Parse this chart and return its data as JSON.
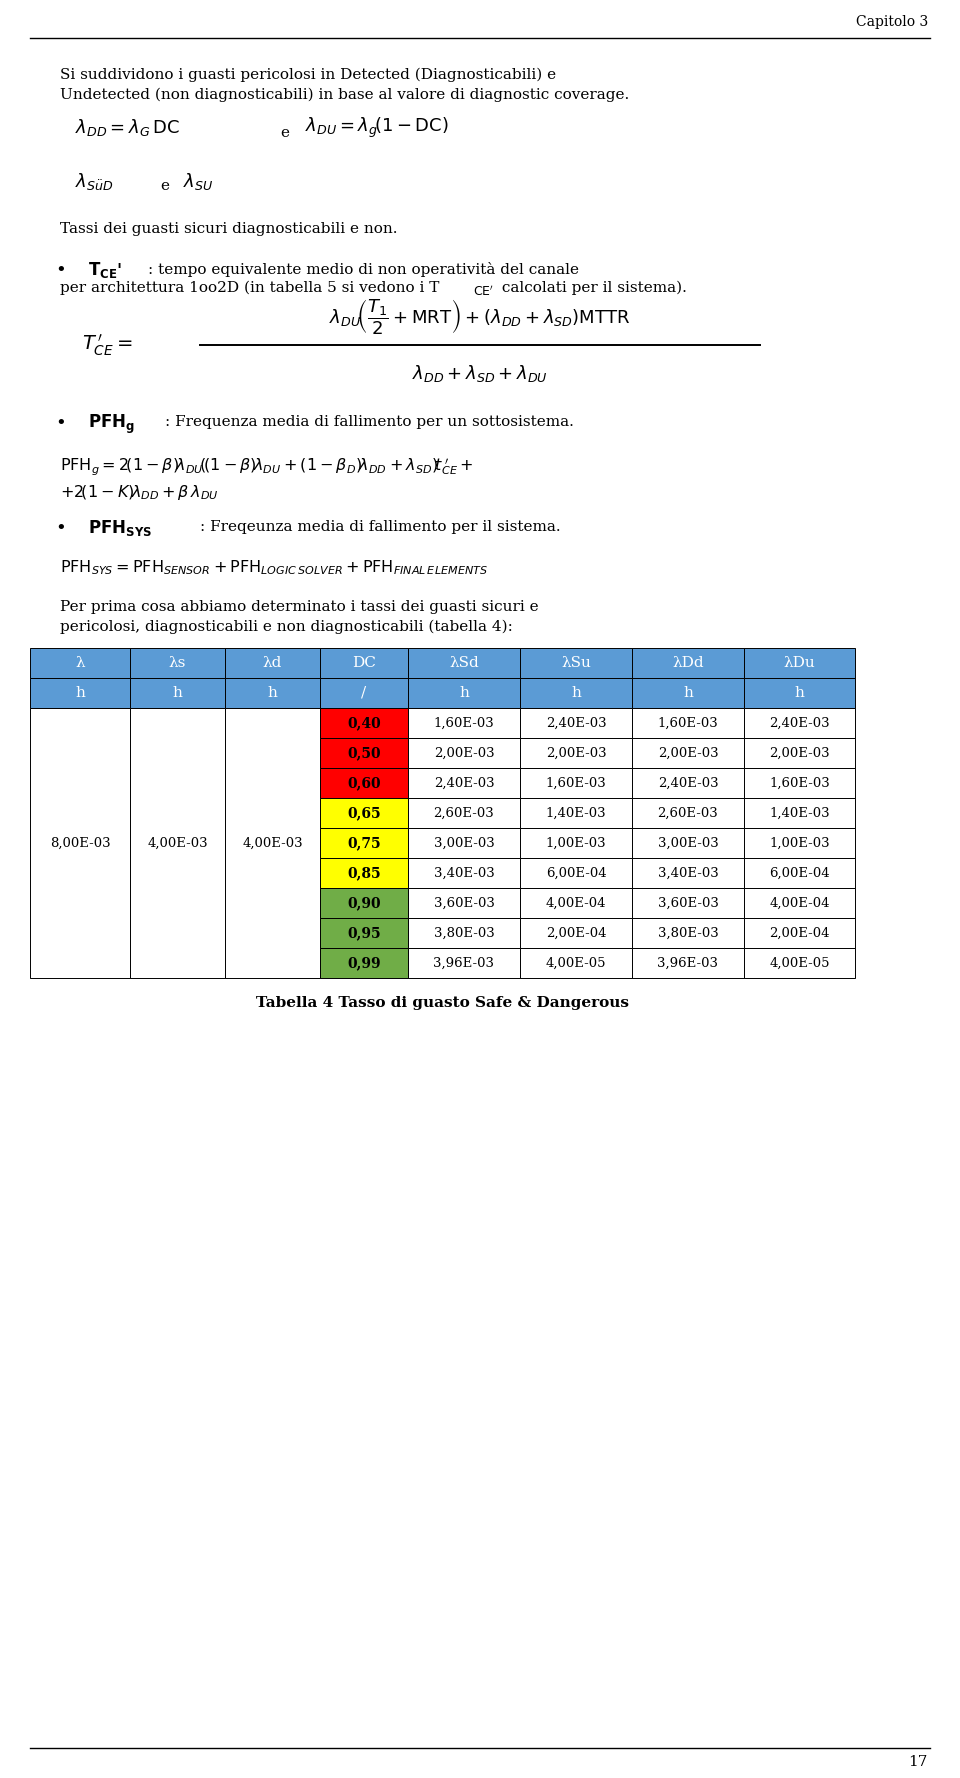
{
  "page_number": "17",
  "chapter": "Capitolo 3",
  "background_color": "#ffffff",
  "table": {
    "col_labels": [
      "λ",
      "λs",
      "λd",
      "DC",
      "λSd",
      "λSu",
      "λDd",
      "λDu"
    ],
    "row2_labels": [
      "h",
      "h",
      "h",
      "/",
      "h",
      "h",
      "h",
      "h"
    ],
    "header_bg": "#5B9BD5",
    "dc_values": [
      "0,40",
      "0,50",
      "0,60",
      "0,65",
      "0,75",
      "0,85",
      "0,90",
      "0,95",
      "0,99"
    ],
    "dc_colors": [
      "#FF0000",
      "#FF0000",
      "#FF0000",
      "#FFFF00",
      "#FFFF00",
      "#FFFF00",
      "#70AD47",
      "#70AD47",
      "#70AD47"
    ],
    "lambda_col": "8,00E-03",
    "lambdas_col": "4,00E-03",
    "lambdad_col": "4,00E-03",
    "data": [
      [
        "1,60E-03",
        "2,40E-03",
        "1,60E-03",
        "2,40E-03"
      ],
      [
        "2,00E-03",
        "2,00E-03",
        "2,00E-03",
        "2,00E-03"
      ],
      [
        "2,40E-03",
        "1,60E-03",
        "2,40E-03",
        "1,60E-03"
      ],
      [
        "2,60E-03",
        "1,40E-03",
        "2,60E-03",
        "1,40E-03"
      ],
      [
        "3,00E-03",
        "1,00E-03",
        "3,00E-03",
        "1,00E-03"
      ],
      [
        "3,40E-03",
        "6,00E-04",
        "3,40E-03",
        "6,00E-04"
      ],
      [
        "3,60E-03",
        "4,00E-04",
        "3,60E-03",
        "4,00E-04"
      ],
      [
        "3,80E-03",
        "2,00E-04",
        "3,80E-03",
        "2,00E-04"
      ],
      [
        "3,96E-03",
        "4,00E-05",
        "3,96E-03",
        "4,00E-05"
      ]
    ],
    "caption": "Tabella 4 Tasso di guasto Safe & Dangerous"
  }
}
